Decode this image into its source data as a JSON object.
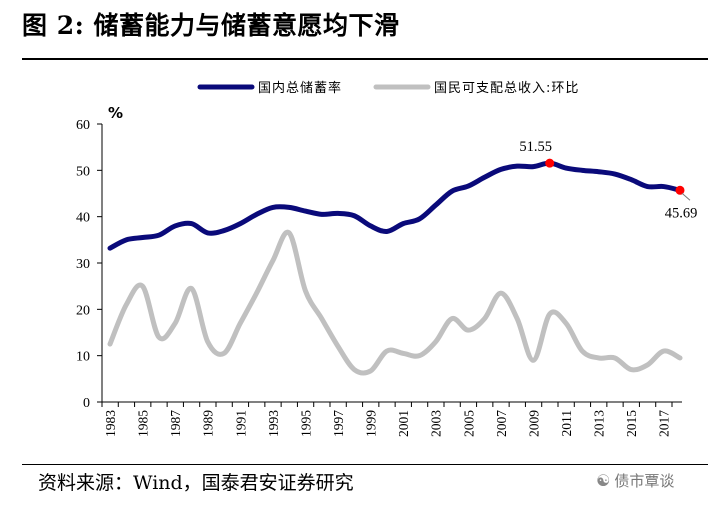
{
  "title": "图 2:  储蓄能力与储蓄意愿均下滑",
  "source": "资料来源：Wind，国泰君安证券研究",
  "watermark": "债市覃谈",
  "chart_data": {
    "type": "line",
    "ylabel": "%",
    "ylim": [
      0,
      60
    ],
    "yticks": [
      0,
      10,
      20,
      30,
      40,
      50,
      60
    ],
    "xlim": [
      1983,
      2018
    ],
    "xticks": [
      "1983",
      "1985",
      "1987",
      "1989",
      "1991",
      "1993",
      "1995",
      "1997",
      "1999",
      "2001",
      "2003",
      "2005",
      "2007",
      "2009",
      "2011",
      "2013",
      "2015",
      "2017"
    ],
    "legend_position": "top",
    "series": [
      {
        "name": "国内总储蓄率",
        "color": "#0a0a7a",
        "x": [
          1983,
          1984,
          1985,
          1986,
          1987,
          1988,
          1989,
          1990,
          1991,
          1992,
          1993,
          1994,
          1995,
          1996,
          1997,
          1998,
          1999,
          2000,
          2001,
          2002,
          2003,
          2004,
          2005,
          2006,
          2007,
          2008,
          2009,
          2010,
          2011,
          2012,
          2013,
          2014,
          2015,
          2016,
          2017,
          2018
        ],
        "values": [
          33.2,
          35.0,
          35.5,
          36.0,
          38.0,
          38.5,
          36.5,
          37.0,
          38.5,
          40.5,
          42.0,
          42.0,
          41.2,
          40.5,
          40.7,
          40.2,
          38.0,
          36.8,
          38.5,
          39.5,
          42.5,
          45.5,
          46.6,
          48.5,
          50.2,
          50.9,
          50.8,
          51.55,
          50.5,
          50.0,
          49.7,
          49.2,
          48.0,
          46.5,
          46.5,
          45.69
        ]
      },
      {
        "name": "国民可支配总收入:环比",
        "color": "#c0c0c0",
        "x": [
          1983,
          1984,
          1985,
          1986,
          1987,
          1988,
          1989,
          1990,
          1991,
          1992,
          1993,
          1994,
          1995,
          1996,
          1997,
          1998,
          1999,
          2000,
          2001,
          2002,
          2003,
          2004,
          2005,
          2006,
          2007,
          2008,
          2009,
          2010,
          2011,
          2012,
          2013,
          2014,
          2015,
          2016,
          2017,
          2018
        ],
        "values": [
          12.5,
          21.0,
          25.0,
          14.0,
          17.0,
          24.5,
          13.0,
          10.5,
          17.0,
          23.5,
          30.5,
          36.5,
          24.0,
          18.0,
          12.0,
          7.0,
          6.7,
          11.0,
          10.5,
          10.0,
          13.0,
          18.0,
          15.5,
          18.0,
          23.5,
          18.0,
          9.0,
          19.0,
          17.0,
          11.0,
          9.5,
          9.5,
          7.0,
          8.0,
          11.0,
          9.5
        ]
      }
    ],
    "annotations": [
      {
        "series": 0,
        "x": 2010,
        "label": "51.55",
        "position": "above"
      },
      {
        "series": 0,
        "x": 2018,
        "label": "45.69",
        "position": "below"
      }
    ],
    "highlight_color": "#ff0000"
  }
}
